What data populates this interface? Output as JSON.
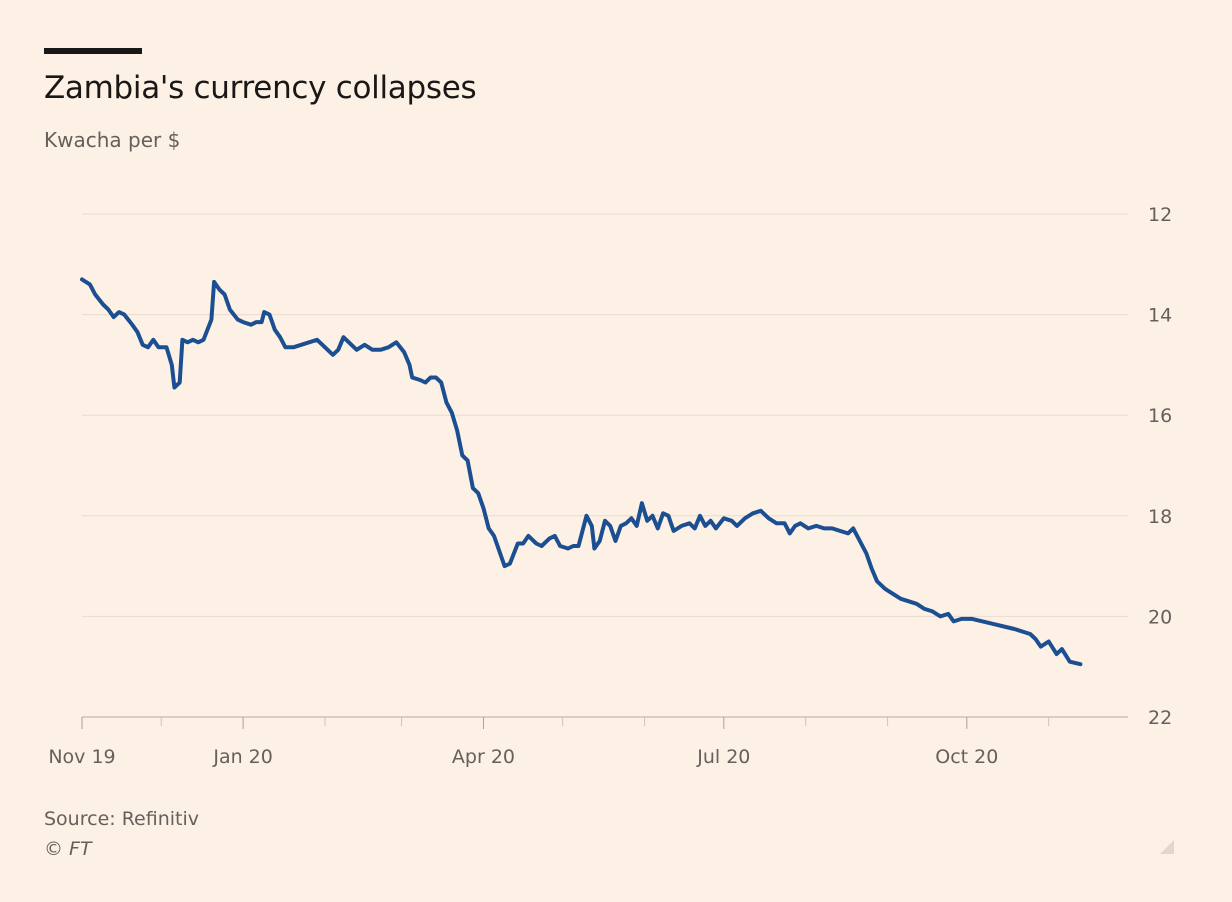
{
  "title": "Zambia's currency collapses",
  "subtitle": "Kwacha per $",
  "source": "Source: Refinitiv",
  "copyright": "© FT",
  "colors": {
    "background": "#fdf1e6",
    "line": "#1b4f91",
    "grid": "#eadbd0",
    "text": "#66605c"
  },
  "chart_data": {
    "type": "line",
    "title": "Zambia's currency collapses",
    "ylabel": "Kwacha per $",
    "y_inverted": true,
    "ylim": [
      12,
      22
    ],
    "yticks": [
      12,
      14,
      16,
      18,
      20,
      22
    ],
    "xlim": [
      "2019-11-01",
      "2020-11-28"
    ],
    "xtick_labels": [
      {
        "date": "2019-11-01",
        "label": "Nov 19"
      },
      {
        "date": "2020-01-01",
        "label": "Jan 20"
      },
      {
        "date": "2020-04-01",
        "label": "Apr 20"
      },
      {
        "date": "2020-07-01",
        "label": "Jul 20"
      },
      {
        "date": "2020-10-01",
        "label": "Oct 20"
      }
    ],
    "minor_ticks": [
      "2019-12-01",
      "2020-02-01",
      "2020-03-01",
      "2020-05-01",
      "2020-06-01",
      "2020-08-01",
      "2020-09-01",
      "2020-11-01"
    ],
    "series": [
      {
        "name": "Kwacha per $",
        "points": [
          [
            "2019-11-01",
            13.3
          ],
          [
            "2019-11-04",
            13.4
          ],
          [
            "2019-11-06",
            13.6
          ],
          [
            "2019-11-09",
            13.8
          ],
          [
            "2019-11-11",
            13.9
          ],
          [
            "2019-11-13",
            14.05
          ],
          [
            "2019-11-15",
            13.95
          ],
          [
            "2019-11-17",
            14.0
          ],
          [
            "2019-11-20",
            14.2
          ],
          [
            "2019-11-22",
            14.35
          ],
          [
            "2019-11-24",
            14.6
          ],
          [
            "2019-11-26",
            14.65
          ],
          [
            "2019-11-28",
            14.5
          ],
          [
            "2019-11-30",
            14.65
          ],
          [
            "2019-12-03",
            14.65
          ],
          [
            "2019-12-05",
            15.0
          ],
          [
            "2019-12-06",
            15.45
          ],
          [
            "2019-12-08",
            15.35
          ],
          [
            "2019-12-09",
            14.5
          ],
          [
            "2019-12-11",
            14.55
          ],
          [
            "2019-12-13",
            14.5
          ],
          [
            "2019-12-15",
            14.55
          ],
          [
            "2019-12-17",
            14.5
          ],
          [
            "2019-12-20",
            14.1
          ],
          [
            "2019-12-21",
            13.35
          ],
          [
            "2019-12-23",
            13.5
          ],
          [
            "2019-12-25",
            13.6
          ],
          [
            "2019-12-27",
            13.9
          ],
          [
            "2019-12-30",
            14.1
          ],
          [
            "2020-01-01",
            14.15
          ],
          [
            "2020-01-04",
            14.2
          ],
          [
            "2020-01-06",
            14.15
          ],
          [
            "2020-01-08",
            14.15
          ],
          [
            "2020-01-09",
            13.95
          ],
          [
            "2020-01-11",
            14.0
          ],
          [
            "2020-01-13",
            14.3
          ],
          [
            "2020-01-15",
            14.45
          ],
          [
            "2020-01-17",
            14.65
          ],
          [
            "2020-01-20",
            14.65
          ],
          [
            "2020-01-23",
            14.6
          ],
          [
            "2020-01-26",
            14.55
          ],
          [
            "2020-01-29",
            14.5
          ],
          [
            "2020-02-01",
            14.65
          ],
          [
            "2020-02-04",
            14.8
          ],
          [
            "2020-02-06",
            14.7
          ],
          [
            "2020-02-08",
            14.45
          ],
          [
            "2020-02-10",
            14.55
          ],
          [
            "2020-02-13",
            14.7
          ],
          [
            "2020-02-16",
            14.6
          ],
          [
            "2020-02-19",
            14.7
          ],
          [
            "2020-02-22",
            14.7
          ],
          [
            "2020-02-25",
            14.65
          ],
          [
            "2020-02-28",
            14.55
          ],
          [
            "2020-03-02",
            14.75
          ],
          [
            "2020-03-04",
            15.0
          ],
          [
            "2020-03-05",
            15.25
          ],
          [
            "2020-03-08",
            15.3
          ],
          [
            "2020-03-10",
            15.35
          ],
          [
            "2020-03-12",
            15.25
          ],
          [
            "2020-03-14",
            15.25
          ],
          [
            "2020-03-16",
            15.35
          ],
          [
            "2020-03-18",
            15.75
          ],
          [
            "2020-03-20",
            15.95
          ],
          [
            "2020-03-22",
            16.3
          ],
          [
            "2020-03-24",
            16.8
          ],
          [
            "2020-03-26",
            16.9
          ],
          [
            "2020-03-28",
            17.45
          ],
          [
            "2020-03-30",
            17.55
          ],
          [
            "2020-04-01",
            17.85
          ],
          [
            "2020-04-03",
            18.25
          ],
          [
            "2020-04-05",
            18.4
          ],
          [
            "2020-04-07",
            18.7
          ],
          [
            "2020-04-09",
            19.0
          ],
          [
            "2020-04-11",
            18.95
          ],
          [
            "2020-04-14",
            18.55
          ],
          [
            "2020-04-16",
            18.55
          ],
          [
            "2020-04-18",
            18.4
          ],
          [
            "2020-04-21",
            18.55
          ],
          [
            "2020-04-23",
            18.6
          ],
          [
            "2020-04-26",
            18.45
          ],
          [
            "2020-04-28",
            18.4
          ],
          [
            "2020-04-30",
            18.6
          ],
          [
            "2020-05-03",
            18.65
          ],
          [
            "2020-05-05",
            18.6
          ],
          [
            "2020-05-07",
            18.6
          ],
          [
            "2020-05-09",
            18.2
          ],
          [
            "2020-05-10",
            18.0
          ],
          [
            "2020-05-12",
            18.2
          ],
          [
            "2020-05-13",
            18.65
          ],
          [
            "2020-05-15",
            18.5
          ],
          [
            "2020-05-17",
            18.1
          ],
          [
            "2020-05-19",
            18.2
          ],
          [
            "2020-05-21",
            18.5
          ],
          [
            "2020-05-23",
            18.2
          ],
          [
            "2020-05-25",
            18.15
          ],
          [
            "2020-05-27",
            18.05
          ],
          [
            "2020-05-29",
            18.2
          ],
          [
            "2020-05-31",
            17.75
          ],
          [
            "2020-06-02",
            18.1
          ],
          [
            "2020-06-04",
            18.0
          ],
          [
            "2020-06-06",
            18.25
          ],
          [
            "2020-06-08",
            17.95
          ],
          [
            "2020-06-10",
            18.0
          ],
          [
            "2020-06-12",
            18.3
          ],
          [
            "2020-06-15",
            18.2
          ],
          [
            "2020-06-18",
            18.15
          ],
          [
            "2020-06-20",
            18.25
          ],
          [
            "2020-06-22",
            18.0
          ],
          [
            "2020-06-24",
            18.2
          ],
          [
            "2020-06-26",
            18.1
          ],
          [
            "2020-06-28",
            18.25
          ],
          [
            "2020-07-01",
            18.05
          ],
          [
            "2020-07-04",
            18.1
          ],
          [
            "2020-07-06",
            18.2
          ],
          [
            "2020-07-09",
            18.05
          ],
          [
            "2020-07-12",
            17.95
          ],
          [
            "2020-07-15",
            17.9
          ],
          [
            "2020-07-18",
            18.05
          ],
          [
            "2020-07-21",
            18.15
          ],
          [
            "2020-07-24",
            18.15
          ],
          [
            "2020-07-26",
            18.35
          ],
          [
            "2020-07-28",
            18.2
          ],
          [
            "2020-07-30",
            18.15
          ],
          [
            "2020-08-02",
            18.25
          ],
          [
            "2020-08-05",
            18.2
          ],
          [
            "2020-08-08",
            18.25
          ],
          [
            "2020-08-11",
            18.25
          ],
          [
            "2020-08-14",
            18.3
          ],
          [
            "2020-08-17",
            18.35
          ],
          [
            "2020-08-19",
            18.25
          ],
          [
            "2020-08-21",
            18.45
          ],
          [
            "2020-08-24",
            18.75
          ],
          [
            "2020-08-26",
            19.05
          ],
          [
            "2020-08-28",
            19.3
          ],
          [
            "2020-08-31",
            19.45
          ],
          [
            "2020-09-03",
            19.55
          ],
          [
            "2020-09-06",
            19.65
          ],
          [
            "2020-09-09",
            19.7
          ],
          [
            "2020-09-12",
            19.75
          ],
          [
            "2020-09-15",
            19.85
          ],
          [
            "2020-09-18",
            19.9
          ],
          [
            "2020-09-21",
            20.0
          ],
          [
            "2020-09-24",
            19.95
          ],
          [
            "2020-09-26",
            20.1
          ],
          [
            "2020-09-29",
            20.05
          ],
          [
            "2020-10-03",
            20.05
          ],
          [
            "2020-10-07",
            20.1
          ],
          [
            "2020-10-11",
            20.15
          ],
          [
            "2020-10-15",
            20.2
          ],
          [
            "2020-10-19",
            20.25
          ],
          [
            "2020-10-22",
            20.3
          ],
          [
            "2020-10-25",
            20.35
          ],
          [
            "2020-10-27",
            20.45
          ],
          [
            "2020-10-29",
            20.6
          ],
          [
            "2020-11-01",
            20.5
          ],
          [
            "2020-11-04",
            20.75
          ],
          [
            "2020-11-06",
            20.65
          ],
          [
            "2020-11-09",
            20.9
          ],
          [
            "2020-11-13",
            20.95
          ]
        ]
      }
    ]
  }
}
